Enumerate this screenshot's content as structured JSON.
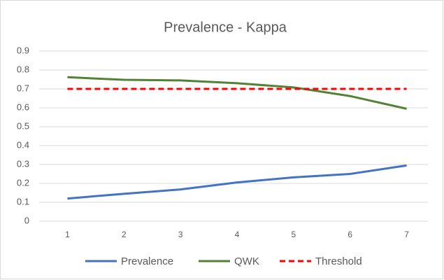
{
  "chart_data": {
    "type": "line",
    "title": "Prevalence - Kappa",
    "categories": [
      "1",
      "2",
      "3",
      "4",
      "5",
      "6",
      "7"
    ],
    "series": [
      {
        "name": "Prevalence",
        "color": "#4472c4",
        "values": [
          0.12,
          0.145,
          0.168,
          0.205,
          0.232,
          0.25,
          0.295
        ]
      },
      {
        "name": "QWK",
        "color": "#548235",
        "values": [
          0.762,
          0.748,
          0.745,
          0.73,
          0.708,
          0.662,
          0.595
        ]
      },
      {
        "name": "Threshold",
        "color": "#ff0000",
        "dashed": true,
        "values": [
          0.7,
          0.7,
          0.7,
          0.7,
          0.7,
          0.7,
          0.7
        ]
      }
    ],
    "ylim": [
      0,
      0.9
    ],
    "yticks": [
      0,
      0.1,
      0.2,
      0.3,
      0.4,
      0.5,
      0.6,
      0.7,
      0.8,
      0.9
    ],
    "grid": true,
    "legend": "bottom"
  }
}
